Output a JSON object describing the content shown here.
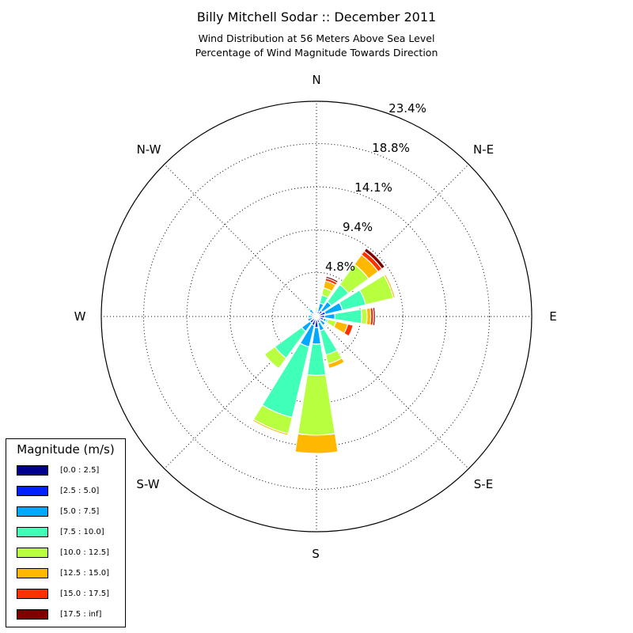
{
  "chart_data": {
    "type": "windrose",
    "title": "Billy Mitchell Sodar :: December 2011",
    "subtitle_lines": [
      "Wind Distribution at 56 Meters Above Sea Level",
      "Percentage of Wind Magnitude Towards Direction"
    ],
    "direction_labels": [
      "N",
      "N-E",
      "E",
      "S-E",
      "S",
      "S-W",
      "W",
      "N-W"
    ],
    "radial_tick_labels": [
      "4.8%",
      "9.4%",
      "14.1%",
      "18.8%",
      "23.4%"
    ],
    "radial_ticks": [
      4.8,
      9.4,
      14.1,
      18.8,
      23.4
    ],
    "rmax": 23.4,
    "grid": true,
    "legend_title": "Magnitude (m/s)",
    "legend_placement": "bottom-left",
    "bins": [
      {
        "label": "[0.0 : 2.5]",
        "color": "#00008f"
      },
      {
        "label": "[2.5 : 5.0]",
        "color": "#0020ff"
      },
      {
        "label": "[5.0 : 7.5]",
        "color": "#00a8ff"
      },
      {
        "label": "[7.5 : 10.0]",
        "color": "#40ffb8"
      },
      {
        "label": "[10.0 : 12.5]",
        "color": "#b8ff40"
      },
      {
        "label": "[12.5 : 15.0]",
        "color": "#ffb800"
      },
      {
        "label": "[15.0 : 17.5]",
        "color": "#ff3000"
      },
      {
        "label": "[17.5 : inf]",
        "color": "#800000"
      }
    ],
    "sectors": [
      {
        "direction_deg": 0,
        "cumulative": [
          0.2,
          0.4,
          0.6,
          0.8,
          1.0,
          1.1,
          1.2,
          1.2
        ]
      },
      {
        "direction_deg": 22.5,
        "cumulative": [
          0.3,
          0.6,
          1.5,
          2.4,
          3.2,
          4.0,
          4.3,
          4.5
        ]
      },
      {
        "direction_deg": 45,
        "cumulative": [
          0.3,
          0.8,
          2.0,
          4.3,
          7.0,
          8.3,
          8.8,
          9.2
        ]
      },
      {
        "direction_deg": 67.5,
        "cumulative": [
          0.3,
          1.0,
          2.9,
          5.5,
          8.6,
          8.8,
          8.9,
          8.9
        ]
      },
      {
        "direction_deg": 90,
        "cumulative": [
          0.3,
          0.9,
          2.0,
          4.9,
          5.5,
          5.9,
          6.2,
          6.4
        ]
      },
      {
        "direction_deg": 112.5,
        "cumulative": [
          0.3,
          0.8,
          1.1,
          1.3,
          2.2,
          3.5,
          4.1,
          4.1
        ]
      },
      {
        "direction_deg": 135,
        "cumulative": [
          0.3,
          0.6,
          1.2,
          1.3,
          1.4,
          1.4,
          1.4,
          1.4
        ]
      },
      {
        "direction_deg": 157.5,
        "cumulative": [
          0.3,
          0.7,
          1.6,
          4.3,
          5.3,
          5.8,
          5.8,
          5.8
        ]
      },
      {
        "direction_deg": 180,
        "cumulative": [
          0.3,
          1.2,
          3.0,
          6.4,
          12.9,
          14.9,
          15.0,
          15.0
        ]
      },
      {
        "direction_deg": 202.5,
        "cumulative": [
          0.3,
          1.0,
          3.4,
          11.3,
          13.1,
          13.3,
          13.4,
          13.4
        ]
      },
      {
        "direction_deg": 225,
        "cumulative": [
          0.3,
          0.9,
          2.0,
          5.6,
          7.0,
          7.1,
          7.1,
          7.1
        ]
      },
      {
        "direction_deg": 247.5,
        "cumulative": [
          0.2,
          0.5,
          1.0,
          1.0,
          1.0,
          1.0,
          1.0,
          1.0
        ]
      },
      {
        "direction_deg": 270,
        "cumulative": [
          0.2,
          0.4,
          0.9,
          1.0,
          1.0,
          1.0,
          1.0,
          1.0
        ]
      },
      {
        "direction_deg": 292.5,
        "cumulative": [
          0.2,
          0.5,
          0.7,
          0.7,
          0.7,
          0.7,
          0.7,
          0.7
        ]
      },
      {
        "direction_deg": 315,
        "cumulative": [
          0.2,
          0.4,
          1.0,
          1.2,
          1.2,
          1.2,
          1.2,
          1.2
        ]
      },
      {
        "direction_deg": 337.5,
        "cumulative": [
          0.2,
          0.3,
          0.4,
          0.5,
          0.5,
          0.5,
          0.5,
          0.5
        ]
      }
    ]
  }
}
